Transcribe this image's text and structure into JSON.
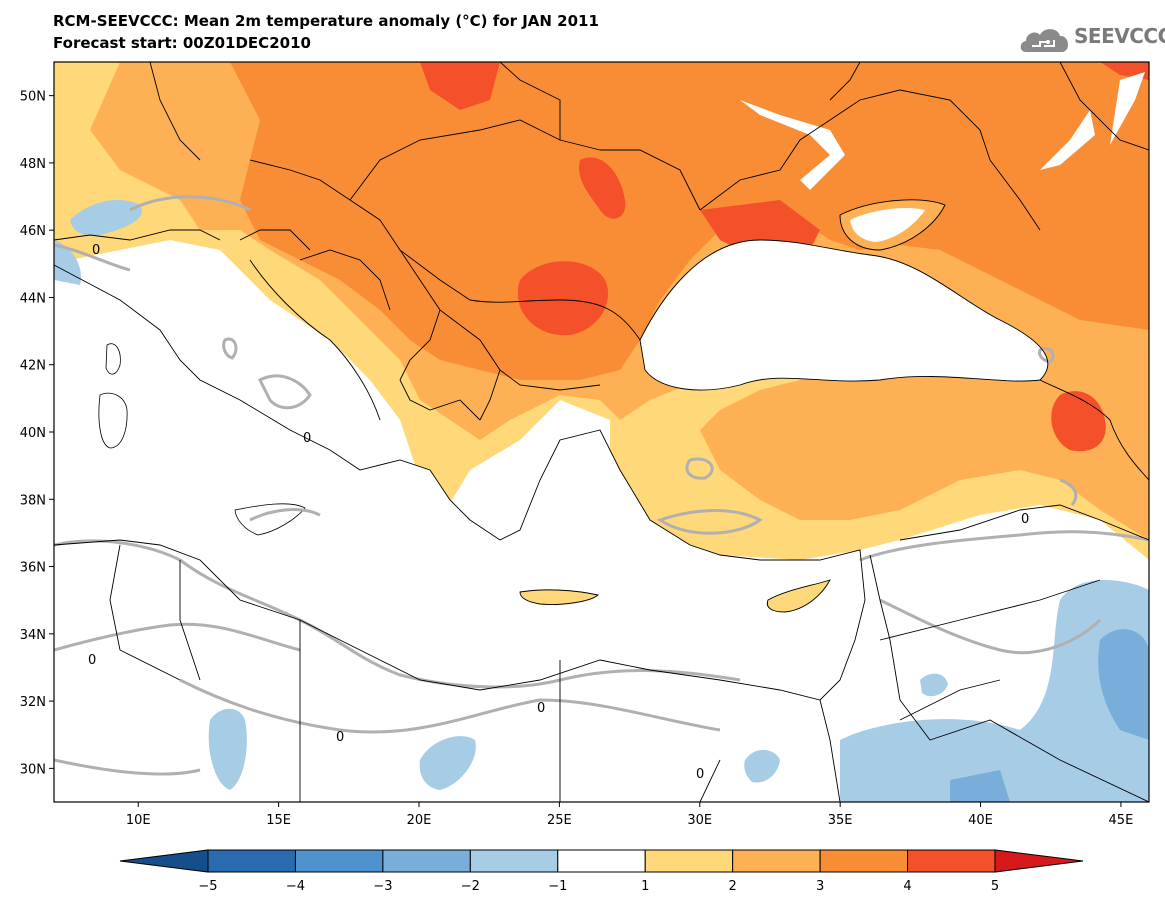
{
  "header": {
    "title": "RCM-SEEVCCC: Mean 2m temperature anomaly (°C) for JAN 2011",
    "subtitle": "Forecast start: 00Z01DEC2010",
    "logo_text": "SEEVCCC",
    "logo_icon": "cloud-icon"
  },
  "map": {
    "lon_range": [
      7,
      46
    ],
    "lat_range": [
      29,
      51
    ],
    "lat_labels": [
      "30N",
      "32N",
      "34N",
      "36N",
      "38N",
      "40N",
      "42N",
      "44N",
      "46N",
      "48N",
      "50N"
    ],
    "lon_labels": [
      "10E",
      "15E",
      "20E",
      "25E",
      "30E",
      "35E",
      "40E",
      "45E"
    ],
    "contour_labels": [
      "0",
      "0",
      "0",
      "0",
      "0",
      "0",
      "0"
    ]
  },
  "colorbar": {
    "labels": [
      "−5",
      "−4",
      "−3",
      "−2",
      "−1",
      "1",
      "2",
      "3",
      "4",
      "5"
    ],
    "colors": [
      "#144f8c",
      "#2a6bb0",
      "#4e93cd",
      "#78aed9",
      "#a7cce6",
      "#ffffff",
      "#ffd87a",
      "#fdb154",
      "#f88d36",
      "#f4502a",
      "#d7191c"
    ]
  },
  "colors": {
    "sea": "#ffffff",
    "anomaly_1_2": "#ffd87a",
    "anomaly_2_3": "#fdb154",
    "anomaly_3_4": "#f88d36",
    "anomaly_4_5": "#f4502a",
    "anomaly_neg_1_2": "#a7cce6",
    "anomaly_neg_2_3": "#78aed9",
    "zero_contour": "#b0b0b0",
    "border": "#000000"
  }
}
